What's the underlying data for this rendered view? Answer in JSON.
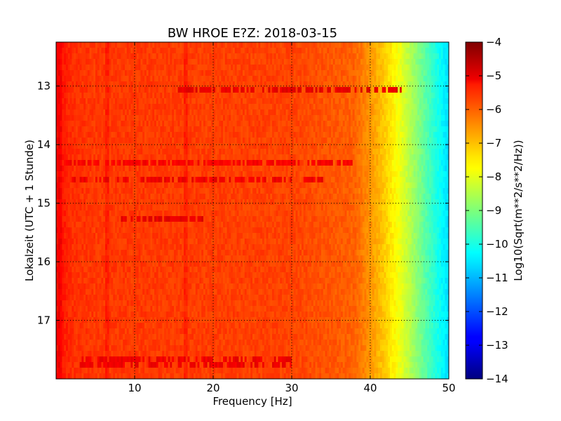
{
  "chart_data": {
    "type": "heatmap",
    "title": "BW HROE E?Z: 2018-03-15",
    "xlabel": "Frequency [Hz]",
    "ylabel": "Lokalzeit (UTC + 1 Stunde)",
    "xlim": [
      0,
      50
    ],
    "ylim": [
      12.25,
      18.0
    ],
    "y_inverted": true,
    "grid": "dotted",
    "x_ticks": [
      10,
      20,
      30,
      40,
      50
    ],
    "x_tick_labels": [
      "10",
      "20",
      "30",
      "40",
      "50"
    ],
    "y_ticks": [
      13,
      14,
      15,
      16,
      17
    ],
    "y_tick_labels": [
      "13",
      "14",
      "15",
      "16",
      "17"
    ],
    "colormap": "jet",
    "colorbar": {
      "label": "Log10(Sqrt(m**2/s**2/Hz))",
      "range": [
        -14,
        -4
      ],
      "ticks": [
        -4,
        -5,
        -6,
        -7,
        -8,
        -9,
        -10,
        -11,
        -12,
        -13,
        -14
      ],
      "tick_labels": [
        "−4",
        "−5",
        "−6",
        "−7",
        "−8",
        "−9",
        "−10",
        "−11",
        "−12",
        "−13",
        "−14"
      ]
    },
    "spectral_profile": {
      "frequency_hz": [
        0,
        1,
        2,
        5,
        10,
        20,
        30,
        38,
        40,
        42,
        44,
        46,
        48,
        50
      ],
      "value": [
        -5.3,
        -5.5,
        -5.7,
        -5.8,
        -5.8,
        -5.85,
        -5.9,
        -6.2,
        -6.7,
        -7.3,
        -8.0,
        -8.9,
        -9.8,
        -10.6
      ]
    },
    "vertical_streaks_hz": [
      0.5,
      6.5,
      16.5
    ],
    "horizontal_bands": [
      {
        "time": 13.08,
        "f_from": 15,
        "f_to": 44,
        "value": -5.0
      },
      {
        "time": 14.28,
        "f_from": 0,
        "f_to": 38,
        "value": -5.2
      },
      {
        "time": 14.6,
        "f_from": 2,
        "f_to": 34,
        "value": -5.1
      },
      {
        "time": 15.28,
        "f_from": 8,
        "f_to": 19,
        "value": -5.0
      },
      {
        "time": 17.72,
        "f_from": 3,
        "f_to": 30,
        "value": -5.1
      }
    ]
  }
}
